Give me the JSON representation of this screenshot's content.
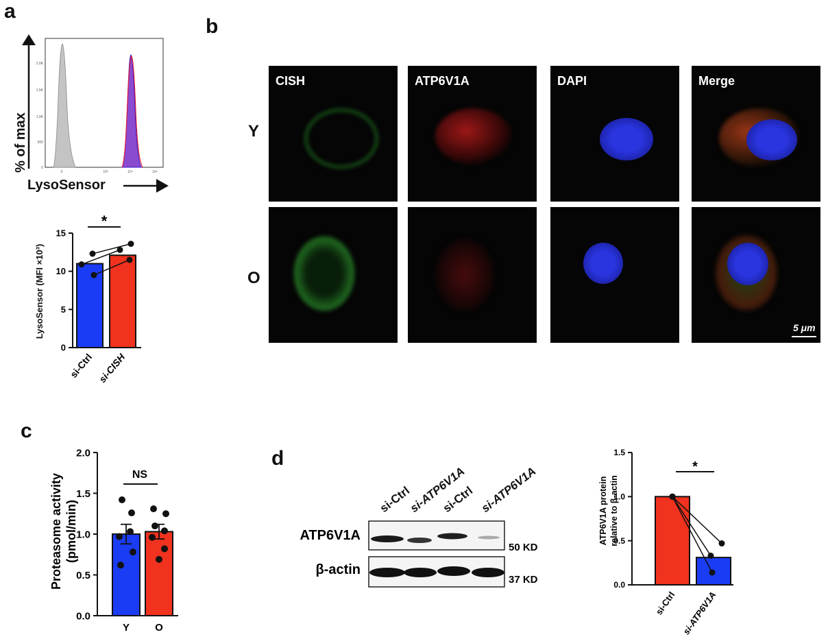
{
  "panels": {
    "a": {
      "letter": "a",
      "histogram": {
        "ylabel": "% of max",
        "xlabel": "LysoSensor",
        "ytick_labels": [
          "2.0K",
          "1.5K",
          "1.0K",
          "500",
          "0"
        ],
        "xtick_labels": [
          "0",
          "10³",
          "10⁴",
          "10⁵"
        ]
      },
      "chart": {
        "ylabel": "LysoSensor (MFI ×10³)",
        "significance": "*"
      }
    },
    "b": {
      "letter": "b",
      "channels": [
        "CISH",
        "ATP6V1A",
        "DAPI",
        "Merge"
      ],
      "rows": [
        "Y",
        "O"
      ],
      "scale_bar": "5 μm"
    },
    "c": {
      "letter": "c",
      "chart": {
        "ylabel_line1": "Proteasome activity",
        "ylabel_line2": "(pmol/min)",
        "significance": "NS"
      }
    },
    "d": {
      "letter": "d",
      "blot": {
        "lanes": [
          "si-Ctrl",
          "si-ATP6V1A",
          "si-Ctrl",
          "si-ATP6V1A"
        ],
        "rows": [
          {
            "label": "ATP6V1A",
            "size": "50 KD"
          },
          {
            "label": "β-actin",
            "size": "37 KD"
          }
        ]
      },
      "chart": {
        "ylabel_line1": "ATP6V1A protein",
        "ylabel_line2": "relative to β-actin",
        "significance": "*"
      }
    }
  },
  "chart_data": [
    {
      "id": "a-bar",
      "type": "bar",
      "categories": [
        "si-Ctrl",
        "si-CISH"
      ],
      "values": [
        11.0,
        12.1
      ],
      "colors": [
        "#1a3cf5",
        "#f0321e"
      ],
      "points": [
        [
          12.3,
          10.9,
          9.5
        ],
        [
          13.6,
          12.8,
          11.5
        ]
      ],
      "paired": true,
      "ylabel": "LysoSensor (MFI ×10³)",
      "ylim": [
        0,
        15
      ],
      "yticks": [
        0,
        5,
        10,
        15
      ],
      "significance": "*"
    },
    {
      "id": "c-bar",
      "type": "bar",
      "categories": [
        "Y",
        "O"
      ],
      "values": [
        1.0,
        1.03
      ],
      "errors": [
        0.12,
        0.09
      ],
      "colors": [
        "#1a3cf5",
        "#f0321e"
      ],
      "points": [
        [
          1.42,
          1.26,
          1.03,
          0.97,
          0.78,
          0.62
        ],
        [
          1.31,
          1.25,
          1.1,
          1.04,
          0.96,
          0.82,
          0.69
        ]
      ],
      "paired": false,
      "ylabel": "Proteasome activity (pmol/min)",
      "ylim": [
        0,
        2.0
      ],
      "yticks": [
        0.0,
        0.5,
        1.0,
        1.5,
        2.0
      ],
      "significance": "NS"
    },
    {
      "id": "d-bar",
      "type": "bar",
      "categories": [
        "si-Ctrl",
        "si-ATP6V1A"
      ],
      "values": [
        1.0,
        0.31
      ],
      "colors": [
        "#f0321e",
        "#1a3cf5"
      ],
      "points": [
        [
          1.0,
          1.0,
          1.0
        ],
        [
          0.47,
          0.33,
          0.14
        ]
      ],
      "paired": true,
      "ylabel": "ATP6V1A protein relative to β-actin",
      "ylim": [
        0,
        1.5
      ],
      "yticks": [
        0.0,
        0.5,
        1.0,
        1.5
      ],
      "significance": "*"
    },
    {
      "id": "a-histogram",
      "type": "area",
      "series": [
        {
          "color": "#b8b8b8"
        },
        {
          "color": "#7a2fc0"
        },
        {
          "color": "#e0203a"
        }
      ]
    }
  ]
}
